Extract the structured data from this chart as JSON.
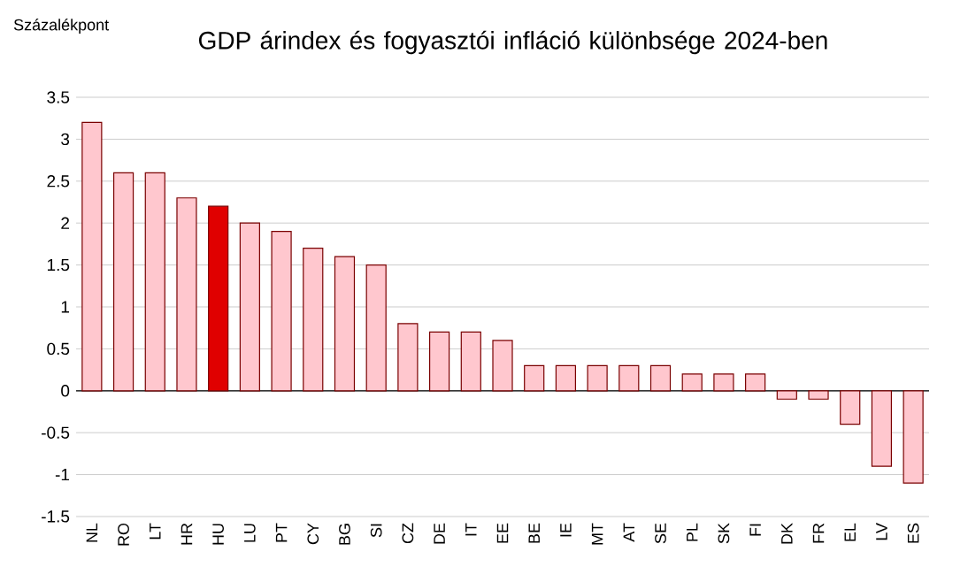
{
  "chart_data": {
    "type": "bar",
    "title": "GDP árindex és fogyasztói infláció különbsége 2024-ben",
    "ylabel": "Százalékpont",
    "categories": [
      "NL",
      "RO",
      "LT",
      "HR",
      "HU",
      "LU",
      "PT",
      "CY",
      "BG",
      "SI",
      "CZ",
      "DE",
      "IT",
      "EE",
      "BE",
      "IE",
      "MT",
      "AT",
      "SE",
      "PL",
      "SK",
      "FI",
      "DK",
      "FR",
      "EL",
      "LV",
      "ES"
    ],
    "values": [
      3.2,
      2.6,
      2.6,
      2.3,
      2.2,
      2.0,
      1.9,
      1.7,
      1.6,
      1.5,
      0.8,
      0.7,
      0.7,
      0.6,
      0.3,
      0.3,
      0.3,
      0.3,
      0.3,
      0.2,
      0.2,
      0.2,
      -0.1,
      -0.1,
      -0.4,
      -0.9,
      -1.1
    ],
    "colors": [
      "#ffc7ce",
      "#ffc7ce",
      "#ffc7ce",
      "#ffc7ce",
      "#e00000",
      "#ffc7ce",
      "#ffc7ce",
      "#ffc7ce",
      "#ffc7ce",
      "#ffc7ce",
      "#ffc7ce",
      "#ffc7ce",
      "#ffc7ce",
      "#ffc7ce",
      "#ffc7ce",
      "#ffc7ce",
      "#ffc7ce",
      "#ffc7ce",
      "#ffc7ce",
      "#ffc7ce",
      "#ffc7ce",
      "#ffc7ce",
      "#ffc7ce",
      "#ffc7ce",
      "#ffc7ce",
      "#ffc7ce",
      "#ffc7ce"
    ],
    "ylim": [
      -1.5,
      3.5
    ],
    "yticks": [
      -1.5,
      -1,
      -0.5,
      0,
      0.5,
      1,
      1.5,
      2,
      2.5,
      3,
      3.5
    ],
    "grid": "y"
  }
}
